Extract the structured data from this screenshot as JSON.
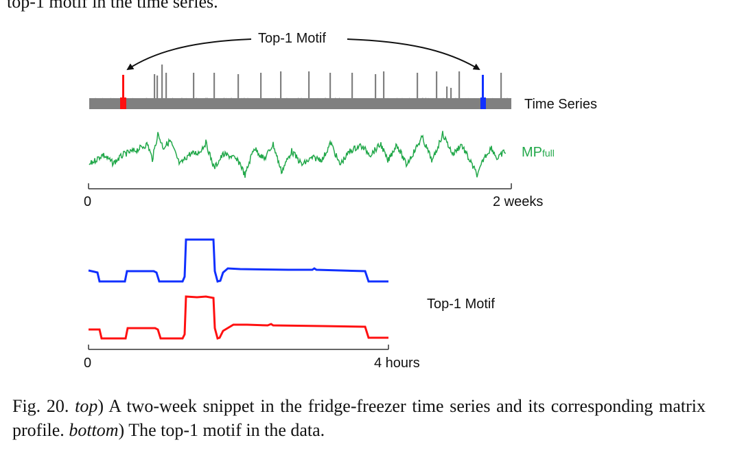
{
  "top_clipped_text": "top-1 motif in the time series.",
  "figure": {
    "top_annotation": "Top-1 Motif",
    "time_series_label": "Time Series",
    "mp_label_main": "MP",
    "mp_label_sub": "full",
    "top_axis": {
      "start": "0",
      "end": "2 weeks"
    },
    "bottom_label": "Top-1 Motif",
    "bottom_axis": {
      "start": "0",
      "end": "4 hours"
    },
    "colors": {
      "gray": "#808080",
      "green": "#22a84a",
      "red": "#ff1010",
      "blue": "#1030ff"
    }
  },
  "caption": {
    "prefix": "Fig. 20. ",
    "top_word": "top",
    "part1": ") A two-week snippet in the fridge-freezer time series and its corresponding matrix profile. ",
    "bottom_word": "bottom",
    "part2": ") The top-1 motif in the data."
  }
}
